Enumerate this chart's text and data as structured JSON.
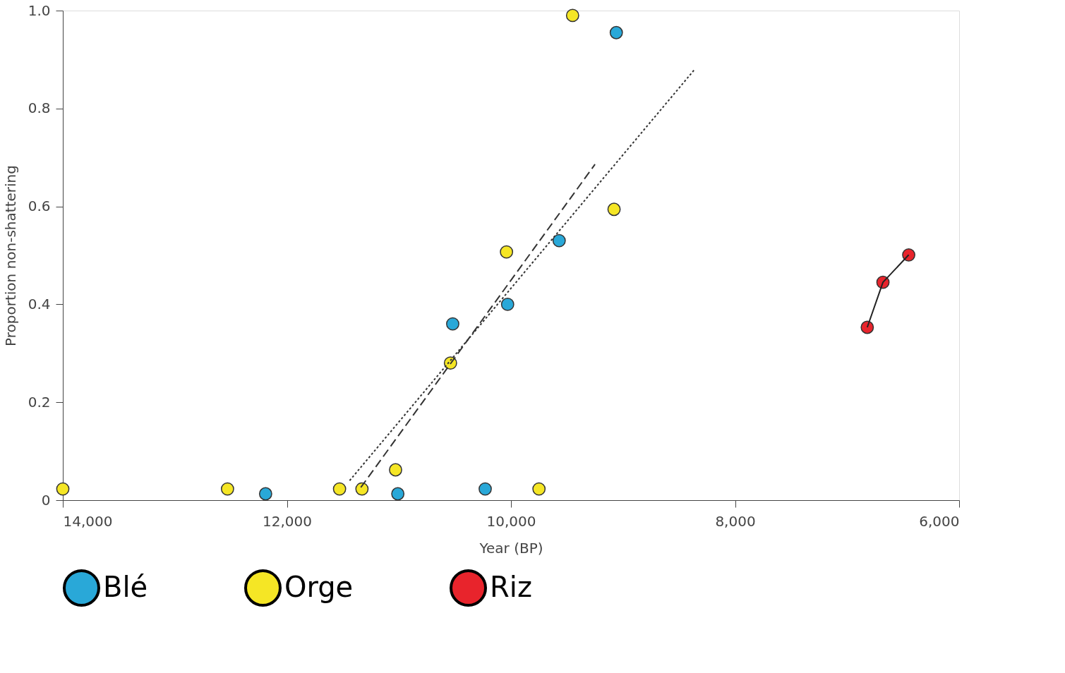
{
  "chart_data": {
    "type": "scatter",
    "xlabel": "Year (BP)",
    "ylabel": "Proportion non-shattering",
    "xlim": [
      14000,
      6000
    ],
    "xticks": [
      {
        "value": 14000,
        "label": "14,000"
      },
      {
        "value": 12000,
        "label": "12,000"
      },
      {
        "value": 10000,
        "label": "10,000"
      },
      {
        "value": 8000,
        "label": "8,000"
      },
      {
        "value": 6000,
        "label": "6,000"
      }
    ],
    "ylim": [
      0,
      1
    ],
    "yticks": [
      0,
      0.2,
      0.4,
      0.6,
      0.8,
      {
        "value": 1,
        "label": "1.0"
      }
    ],
    "grid": false,
    "legend": "bottom",
    "marker": "circle",
    "series": [
      {
        "name": "Blé",
        "color": "#29a8d8",
        "x": [
          12190,
          11010,
          10520,
          10230,
          10030,
          9570,
          9060
        ],
        "values": [
          0.013,
          0.013,
          0.36,
          0.023,
          0.4,
          0.53,
          0.955
        ]
      },
      {
        "name": "Orge",
        "color": "#f5e625",
        "x": [
          14000,
          12530,
          11530,
          11330,
          11030,
          10540,
          10040,
          9750,
          9450,
          9080
        ],
        "values": [
          0.023,
          0.023,
          0.023,
          0.023,
          0.062,
          0.28,
          0.507,
          0.023,
          0.99,
          0.594
        ]
      },
      {
        "name": "Riz",
        "color": "#e8242c",
        "x": [
          6820,
          6680,
          6450
        ],
        "values": [
          0.353,
          0.445,
          0.501
        ]
      },
      {
        "type": "line",
        "color": "#222222",
        "line_style": "solid",
        "marker": "none",
        "x": [
          6820,
          6680,
          6450
        ],
        "values": [
          0.353,
          0.445,
          0.501
        ]
      },
      {
        "type": "line",
        "color": "#333333",
        "line_style": "dotted",
        "marker": "none",
        "x": [
          11440,
          8360
        ],
        "values": [
          0.04,
          0.88
        ]
      },
      {
        "type": "line",
        "color": "#333333",
        "line_style": "dashed",
        "marker": "none",
        "x": [
          11340,
          9250
        ],
        "values": [
          0.026,
          0.686
        ]
      }
    ]
  }
}
